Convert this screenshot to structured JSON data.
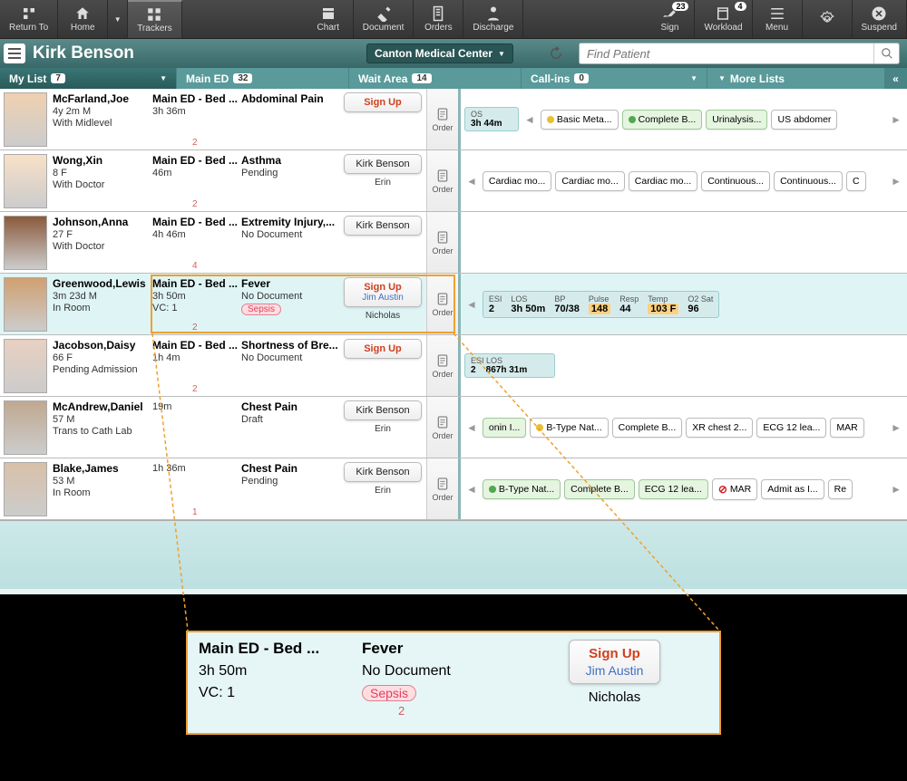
{
  "toolbar": {
    "return": "Return To",
    "home": "Home",
    "trackers": "Trackers",
    "chart": "Chart",
    "document": "Document",
    "orders": "Orders",
    "discharge": "Discharge",
    "sign": "Sign",
    "sign_badge": "23",
    "workload": "Workload",
    "workload_badge": "4",
    "menu": "Menu",
    "suspend": "Suspend"
  },
  "header": {
    "name": "Kirk Benson",
    "location": "Canton Medical Center",
    "search_ph": "Find Patient"
  },
  "tabs": {
    "mylist": {
      "label": "My List",
      "count": "7"
    },
    "mained": {
      "label": "Main ED",
      "count": "32"
    },
    "wait": {
      "label": "Wait Area",
      "count": "14"
    },
    "call": {
      "label": "Call-ins",
      "count": "0"
    },
    "more": {
      "label": "More Lists"
    }
  },
  "order_label": "Order",
  "patients": [
    {
      "name": "McFarland,Joe",
      "age": "4y 2m M",
      "status": "With Midlevel",
      "bed": "Main ED - Bed ...",
      "time": "3h 36m",
      "cnt": "2",
      "dx": "Abdominal Pain",
      "doc": "",
      "btn_sign": "Sign Up",
      "extra": {
        "type": "chips",
        "los": {
          "l": "OS",
          "v": "3h 44m"
        },
        "items": [
          {
            "txt": "Basic Meta...",
            "dot": "y"
          },
          {
            "txt": "Complete B...",
            "dot": "g",
            "g": true
          },
          {
            "txt": "Urinalysis...",
            "g": true
          },
          {
            "txt": "US abdomer"
          }
        ]
      }
    },
    {
      "name": "Wong,Xin",
      "age": "8 F",
      "status": "With Doctor",
      "bed": "Main ED - Bed ...",
      "time": "46m",
      "cnt": "2",
      "dx": "Asthma",
      "doc": "Pending",
      "btn_p1": "Kirk Benson",
      "nic": "Erin",
      "extra": {
        "type": "chips",
        "items": [
          {
            "txt": "Cardiac mo..."
          },
          {
            "txt": "Cardiac mo..."
          },
          {
            "txt": "Cardiac mo..."
          },
          {
            "txt": "Continuous..."
          },
          {
            "txt": "Continuous..."
          },
          {
            "txt": "C"
          }
        ]
      }
    },
    {
      "name": "Johnson,Anna",
      "age": "27 F",
      "status": "With Doctor",
      "bed": "Main ED - Bed ...",
      "time": "4h 46m",
      "cnt": "4",
      "dx": "Extremity Injury,...",
      "doc": "No Document",
      "btn_p1": "Kirk Benson",
      "extra": {
        "type": "none"
      }
    },
    {
      "name": "Greenwood,Lewis",
      "age": "3m 23d M",
      "status": "In Room",
      "bed": "Main ED - Bed ...",
      "time": "3h 50m",
      "vc": "VC: 1",
      "cnt": "2",
      "dx": "Fever",
      "doc": "No Document",
      "tag": "Sepsis",
      "btn_sign": "Sign Up",
      "btn_p2": "Jim Austin",
      "nic": "Nicholas",
      "hl": true,
      "extra": {
        "type": "vitals",
        "vitals": [
          {
            "l": "ESI",
            "v": "2"
          },
          {
            "l": "LOS",
            "v": "3h 50m"
          },
          {
            "l": "BP",
            "v": "70/38"
          },
          {
            "l": "Pulse",
            "v": "148",
            "warn": true
          },
          {
            "l": "Resp",
            "v": "44"
          },
          {
            "l": "Temp",
            "v": "103 F",
            "warn": true
          },
          {
            "l": "O2 Sat",
            "v": "96"
          }
        ]
      }
    },
    {
      "name": "Jacobson,Daisy",
      "age": "66 F",
      "status": "Pending Admission",
      "bed": "Main ED - Bed ...",
      "time": "1h 4m",
      "cnt": "2",
      "dx": "Shortness of Bre...",
      "doc": "No Document",
      "btn_sign": "Sign Up",
      "extra": {
        "type": "los",
        "los": {
          "l": "ESI  LOS",
          "v": "2    867h 31m"
        }
      }
    },
    {
      "name": "McAndrew,Daniel",
      "age": "57 M",
      "status": "Trans to Cath Lab",
      "bed": "",
      "time": "19m",
      "dx": "Chest Pain",
      "doc": "Draft",
      "btn_p1": "Kirk Benson",
      "nic": "Erin",
      "extra": {
        "type": "chips",
        "items": [
          {
            "txt": "onin I...",
            "g": true
          },
          {
            "txt": "B-Type Nat...",
            "dot": "y"
          },
          {
            "txt": "Complete B..."
          },
          {
            "txt": "XR chest 2..."
          },
          {
            "txt": "ECG 12 lea..."
          },
          {
            "txt": "MAR"
          }
        ]
      }
    },
    {
      "name": "Blake,James",
      "age": "53 M",
      "status": "In Room",
      "bed": "",
      "time": "1h 36m",
      "cnt": "1",
      "dx": "Chest Pain",
      "doc": "Pending",
      "btn_p1": "Kirk Benson",
      "nic": "Erin",
      "extra": {
        "type": "chips",
        "items": [
          {
            "txt": "B-Type Nat...",
            "dot": "g",
            "g": true
          },
          {
            "txt": "Complete B...",
            "g": true
          },
          {
            "txt": "ECG 12 lea...",
            "g": true
          },
          {
            "txt": "MAR",
            "alert": true
          },
          {
            "txt": "Admit as I..."
          },
          {
            "txt": "Re"
          }
        ]
      }
    }
  ],
  "zoom": {
    "bed": "Main ED - Bed ...",
    "time": "3h 50m",
    "vc": "VC: 1",
    "dx": "Fever",
    "doc": "No Document",
    "tag": "Sepsis",
    "cnt": "2",
    "sign": "Sign Up",
    "p2": "Jim Austin",
    "nic": "Nicholas"
  },
  "colors": {
    "accent": "#f0a030",
    "teal": "#5a9a9a"
  }
}
